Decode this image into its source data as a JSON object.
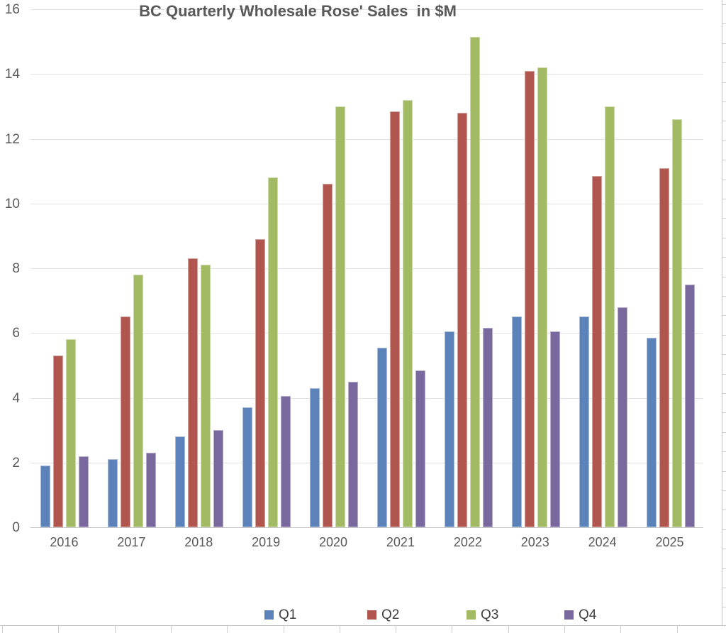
{
  "chart_data": {
    "type": "bar",
    "title": "BC Quarterly Wholesale Rose' Sales  in $M",
    "xlabel": "",
    "ylabel": "",
    "categories": [
      "2016",
      "2017",
      "2018",
      "2019",
      "2020",
      "2021",
      "2022",
      "2023",
      "2024",
      "2025"
    ],
    "series": [
      {
        "name": "Q1",
        "color": "#5b83b9",
        "values": [
          1.9,
          2.1,
          2.8,
          3.7,
          4.3,
          5.55,
          6.05,
          6.5,
          6.5,
          5.85
        ]
      },
      {
        "name": "Q2",
        "color": "#b0564e",
        "values": [
          5.3,
          6.5,
          8.3,
          8.9,
          10.6,
          12.85,
          12.8,
          14.1,
          10.85,
          11.1
        ]
      },
      {
        "name": "Q3",
        "color": "#a3ba64",
        "values": [
          5.8,
          7.8,
          8.1,
          10.8,
          13.0,
          13.2,
          15.15,
          14.2,
          13.0,
          12.6
        ]
      },
      {
        "name": "Q4",
        "color": "#79689e",
        "values": [
          2.2,
          2.3,
          3.0,
          4.05,
          4.5,
          4.85,
          6.15,
          6.05,
          6.8,
          7.5
        ]
      }
    ],
    "ylim": [
      0,
      16
    ],
    "yticks": [
      0,
      2,
      4,
      6,
      8,
      10,
      12,
      14,
      16
    ],
    "grid": true,
    "legend_position": "bottom",
    "colors": {
      "title_text": "#595959",
      "axis_text": "#595959",
      "gridline": "#e2e2e2",
      "background": "#ffffff"
    }
  }
}
